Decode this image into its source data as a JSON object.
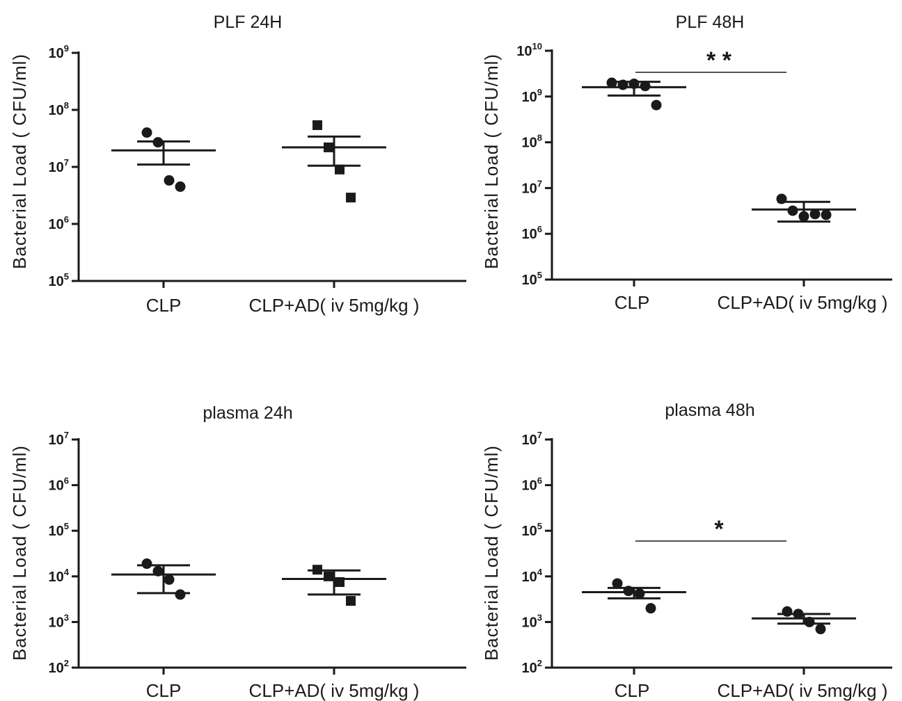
{
  "chart_data": [
    {
      "type": "scatter",
      "title": "PLF 24H",
      "ylabel": "Bacterial  Load  ( CFU/ml)",
      "yscale": "log",
      "ylim": [
        100000,
        1000000000
      ],
      "ytick_exponents": [
        5,
        6,
        7,
        8,
        9
      ],
      "categories": [
        "CLP",
        "CLP+AD( iv 5mg/kg )"
      ],
      "series": [
        {
          "category": "CLP",
          "marker": "circle",
          "points": [
            40000000,
            27000000,
            5800000,
            4500000
          ],
          "mean": 19500000,
          "sem_upper": 28000000,
          "sem_lower": 11000000
        },
        {
          "category": "CLP+AD( iv 5mg/kg )",
          "marker": "square",
          "points": [
            54000000,
            22000000,
            9000000,
            2900000
          ],
          "mean": 22000000,
          "sem_upper": 34000000,
          "sem_lower": 10500000
        }
      ],
      "significance": null
    },
    {
      "type": "scatter",
      "title": "PLF 48H",
      "ylabel": "Bacterial  Load  ( CFU/ml)",
      "yscale": "log",
      "ylim": [
        100000,
        10000000000
      ],
      "ytick_exponents": [
        5,
        6,
        7,
        8,
        9,
        10
      ],
      "categories": [
        "CLP",
        "CLP+AD( iv 5mg/kg )"
      ],
      "series": [
        {
          "category": "CLP",
          "marker": "circle",
          "points": [
            2000000000,
            1800000000,
            1900000000,
            1700000000,
            650000000
          ],
          "mean": 1600000000,
          "sem_upper": 2100000000,
          "sem_lower": 1050000000
        },
        {
          "category": "CLP+AD( iv 5mg/kg )",
          "marker": "circle",
          "points": [
            5800000,
            3200000,
            2400000,
            2700000,
            2600000
          ],
          "mean": 3400000,
          "sem_upper": 5000000,
          "sem_lower": 1850000
        }
      ],
      "significance": "* *"
    },
    {
      "type": "scatter",
      "title": "plasma 24h",
      "ylabel": "Bacterial  Load  ( CFU/ml)",
      "yscale": "log",
      "ylim": [
        100,
        10000000
      ],
      "ytick_exponents": [
        2,
        3,
        4,
        5,
        6,
        7
      ],
      "categories": [
        "CLP",
        "CLP+AD( iv 5mg/kg )"
      ],
      "series": [
        {
          "category": "CLP",
          "marker": "circle",
          "points": [
            19000,
            13000,
            8500,
            4000
          ],
          "mean": 11000,
          "sem_upper": 17500,
          "sem_lower": 4300
        },
        {
          "category": "CLP+AD( iv 5mg/kg )",
          "marker": "square",
          "points": [
            14000,
            10000,
            7500,
            2900
          ],
          "mean": 8800,
          "sem_upper": 13500,
          "sem_lower": 4000
        }
      ],
      "significance": null
    },
    {
      "type": "scatter",
      "title": "plasma 48h",
      "ylabel": "Bacterial  Load  ( CFU/ml)",
      "yscale": "log",
      "ylim": [
        100,
        10000000
      ],
      "ytick_exponents": [
        2,
        3,
        4,
        5,
        6,
        7
      ],
      "categories": [
        "CLP",
        "CLP+AD( iv 5mg/kg )"
      ],
      "series": [
        {
          "category": "CLP",
          "marker": "circle",
          "points": [
            7000,
            4800,
            4200,
            2000
          ],
          "mean": 4500,
          "sem_upper": 5600,
          "sem_lower": 3300
        },
        {
          "category": "CLP+AD( iv 5mg/kg )",
          "marker": "circle",
          "points": [
            1700,
            1500,
            1000,
            700
          ],
          "mean": 1200,
          "sem_upper": 1500,
          "sem_lower": 920
        }
      ],
      "significance": "*"
    }
  ]
}
